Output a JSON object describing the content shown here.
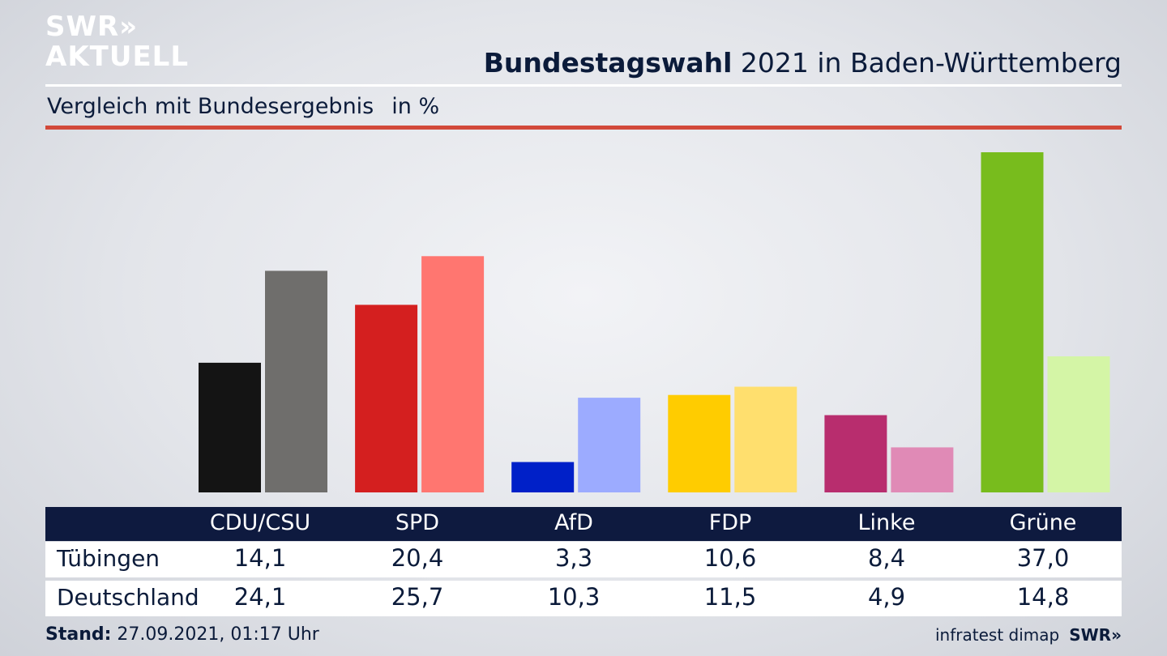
{
  "branding": {
    "logo_line1": "SWR",
    "logo_chevrons": "››",
    "logo_line2": "AKTUELL",
    "footer_logo": "SWR»"
  },
  "header": {
    "title_bold": "Bundestagswahl",
    "title_rest": " 2021 in Baden-Württemberg"
  },
  "subtitle": {
    "text": "Vergleich mit Bundesergebnis",
    "unit": "in %"
  },
  "footer": {
    "stand_label": "Stand:",
    "stand_value": " 27.09.2021, 01:17 Uhr",
    "source": "infratest dimap"
  },
  "table": {
    "row1_label": "Tübingen",
    "row2_label": "Deutschland",
    "col0": {
      "name": "CDU/CSU",
      "v1": "14,1",
      "v2": "24,1"
    },
    "col1": {
      "name": "SPD",
      "v1": "20,4",
      "v2": "25,7"
    },
    "col2": {
      "name": "AfD",
      "v1": "3,3",
      "v2": "10,3"
    },
    "col3": {
      "name": "FDP",
      "v1": "10,6",
      "v2": "11,5"
    },
    "col4": {
      "name": "Linke",
      "v1": "8,4",
      "v2": "4,9"
    },
    "col5": {
      "name": "Grüne",
      "v1": "37,0",
      "v2": "14,8"
    }
  },
  "colors": {
    "accent_red": "#d2493a",
    "header_navy": "#0e1a3f",
    "text_navy": "#0b1b3a"
  },
  "chart_data": {
    "type": "bar",
    "categories": [
      "CDU/CSU",
      "SPD",
      "AfD",
      "FDP",
      "Linke",
      "Grüne"
    ],
    "series": [
      {
        "name": "Tübingen",
        "values": [
          14.1,
          20.4,
          3.3,
          10.6,
          8.4,
          37.0
        ],
        "colors": [
          "#141414",
          "#d41f1f",
          "#0020c8",
          "#ffcc00",
          "#b82d6e",
          "#78bc1d"
        ]
      },
      {
        "name": "Deutschland",
        "values": [
          24.1,
          25.7,
          10.3,
          11.5,
          4.9,
          14.8
        ],
        "colors": [
          "#6f6e6c",
          "#ff7670",
          "#9cabff",
          "#ffdf6e",
          "#e08ab6",
          "#d4f5a6"
        ]
      }
    ],
    "title": "Bundestagswahl 2021 in Baden-Württemberg",
    "subtitle": "Vergleich mit Bundesergebnis",
    "unit": "in %",
    "ylim": [
      0,
      37.0
    ],
    "grid": false,
    "legend": "table below chart"
  }
}
